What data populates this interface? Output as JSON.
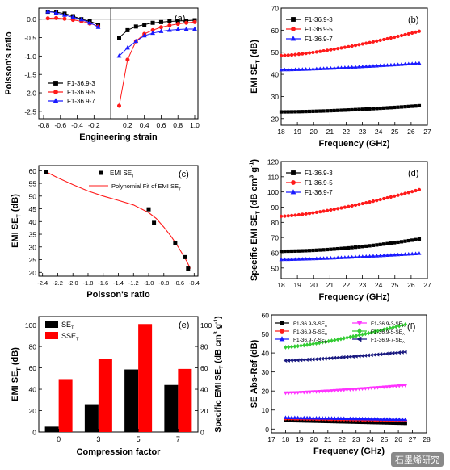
{
  "watermark": "石墨烯研究",
  "colors": {
    "black": "#000000",
    "red": "#ff1a1a",
    "blue": "#1a1aff",
    "magenta": "#ff33ff",
    "green": "#33cc33",
    "navy": "#1a1a80"
  },
  "chart_data": [
    {
      "panel": "(a)",
      "type": "line",
      "xlabel": "Engineering strain",
      "ylabel": "Poisson's ratio",
      "xlim": [
        -0.8,
        1.0
      ],
      "ylim": [
        -2.7,
        0.3
      ],
      "x_break": [
        -0.1,
        0.1
      ],
      "xticks": [
        "-0.8",
        "-0.6",
        "-0.4",
        "-0.2",
        "0.2",
        "0.4",
        "0.6",
        "0.8",
        "1.0"
      ],
      "xtick_values": [
        -0.8,
        -0.6,
        -0.4,
        -0.2,
        0.2,
        0.4,
        0.6,
        0.8,
        1.0
      ],
      "yticks": [
        "0.0",
        "-0.5",
        "-1.0",
        "-1.5",
        "-2.0",
        "-2.5"
      ],
      "ytick_values": [
        0,
        -0.5,
        -1.0,
        -1.5,
        -2.0,
        -2.5
      ],
      "legend_position": "bottom-left",
      "series": [
        {
          "name": "F1-36.9-3",
          "color": "#000000",
          "marker": "square",
          "x": [
            -0.75,
            -0.7,
            -0.65,
            -0.6,
            -0.55,
            -0.5,
            -0.45,
            -0.4,
            -0.35,
            -0.3,
            -0.25,
            -0.2,
            -0.15,
            0.1,
            0.2,
            0.3,
            0.4,
            0.5,
            0.6,
            0.7,
            0.8,
            0.9,
            1.0
          ],
          "y": [
            0.2,
            0.2,
            0.19,
            0.17,
            0.15,
            0.12,
            0.08,
            0.04,
            0.0,
            -0.03,
            -0.06,
            -0.1,
            -0.15,
            -0.5,
            -0.3,
            -0.2,
            -0.15,
            -0.1,
            -0.08,
            -0.06,
            -0.05,
            -0.04,
            -0.03
          ]
        },
        {
          "name": "F1-36.9-5",
          "color": "#ff1a1a",
          "marker": "circle",
          "x": [
            -0.75,
            -0.7,
            -0.65,
            -0.6,
            -0.55,
            -0.5,
            -0.45,
            -0.4,
            -0.35,
            -0.3,
            -0.25,
            -0.2,
            -0.15,
            0.1,
            0.2,
            0.3,
            0.4,
            0.5,
            0.6,
            0.7,
            0.8,
            0.9,
            1.0
          ],
          "y": [
            0.02,
            0.03,
            0.03,
            0.02,
            0.01,
            0.0,
            -0.02,
            -0.04,
            -0.06,
            -0.08,
            -0.12,
            -0.15,
            -0.2,
            -2.35,
            -1.1,
            -0.6,
            -0.4,
            -0.3,
            -0.22,
            -0.17,
            -0.13,
            -0.1,
            -0.08
          ]
        },
        {
          "name": "F1-36.9-7",
          "color": "#1a1aff",
          "marker": "triangle",
          "x": [
            -0.75,
            -0.7,
            -0.65,
            -0.6,
            -0.55,
            -0.5,
            -0.45,
            -0.4,
            -0.35,
            -0.3,
            -0.25,
            -0.2,
            -0.15,
            0.1,
            0.2,
            0.3,
            0.4,
            0.5,
            0.6,
            0.7,
            0.8,
            0.9,
            1.0
          ],
          "y": [
            0.2,
            0.19,
            0.17,
            0.14,
            0.11,
            0.08,
            0.05,
            0.02,
            -0.01,
            -0.05,
            -0.1,
            -0.15,
            -0.22,
            -1.0,
            -0.78,
            -0.6,
            -0.45,
            -0.38,
            -0.33,
            -0.3,
            -0.28,
            -0.27,
            -0.27
          ]
        }
      ]
    },
    {
      "panel": "(b)",
      "type": "line",
      "xlabel": "Frequency (GHz)",
      "ylabel": "EMI SET (dB)",
      "xlim": [
        18,
        27
      ],
      "ylim": [
        17,
        70
      ],
      "xticks": [
        "18",
        "19",
        "20",
        "21",
        "22",
        "23",
        "24",
        "25",
        "26",
        "27"
      ],
      "xtick_values": [
        18,
        19,
        20,
        21,
        22,
        23,
        24,
        25,
        26,
        27
      ],
      "yticks": [
        "20",
        "30",
        "40",
        "50",
        "60",
        "70"
      ],
      "ytick_values": [
        20,
        30,
        40,
        50,
        60,
        70
      ],
      "legend_position": "top-left",
      "series": [
        {
          "name": "F1-36.9-3",
          "color": "#000000",
          "marker": "square",
          "x_range": [
            18,
            26.5
          ],
          "y_start": 23.0,
          "y_end": 25.8,
          "curve": 1.6
        },
        {
          "name": "F1-36.9-5",
          "color": "#ff1a1a",
          "marker": "circle",
          "x_range": [
            18,
            26.5
          ],
          "y_start": 48.5,
          "y_end": 59.5,
          "curve": 1.4
        },
        {
          "name": "F1-36.9-7",
          "color": "#1a1aff",
          "marker": "triangle",
          "x_range": [
            18,
            26.5
          ],
          "y_start": 42.0,
          "y_end": 45.0,
          "curve": 1.4
        }
      ]
    },
    {
      "panel": "(c)",
      "type": "scatter",
      "xlabel": "Poisson's ratio",
      "ylabel": "EMI SET (dB)",
      "xlim": [
        -2.45,
        -0.35
      ],
      "ylim": [
        18.5,
        62
      ],
      "xticks": [
        "-2.4",
        "-2.2",
        "-2.0",
        "-1.8",
        "-1.6",
        "-1.4",
        "-1.2",
        "-1.0",
        "-0.8",
        "-0.6",
        "-0.4"
      ],
      "xtick_values": [
        -2.4,
        -2.2,
        -2.0,
        -1.8,
        -1.6,
        -1.4,
        -1.2,
        -1.0,
        -0.8,
        -0.6,
        -0.4
      ],
      "yticks": [
        "20",
        "25",
        "30",
        "35",
        "40",
        "45",
        "50",
        "55",
        "60"
      ],
      "ytick_values": [
        20,
        25,
        30,
        35,
        40,
        45,
        50,
        55,
        60
      ],
      "legend_position": "top-center",
      "points": {
        "name": "EMI SET",
        "x": [
          -2.35,
          -1.0,
          -0.93,
          -0.65,
          -0.52,
          -0.48
        ],
        "y": [
          59.5,
          44.8,
          39.5,
          31.5,
          26.0,
          21.5
        ]
      },
      "fit": {
        "name": "Polynomial Fit of EMI SET",
        "x": [
          -2.35,
          -2.2,
          -2.0,
          -1.8,
          -1.6,
          -1.4,
          -1.2,
          -1.0,
          -0.9,
          -0.8,
          -0.7,
          -0.6,
          -0.5,
          -0.45
        ],
        "y": [
          59.5,
          57.2,
          54.5,
          52.0,
          50.0,
          48.3,
          46.5,
          43.5,
          41.2,
          37.8,
          34.0,
          29.5,
          24.5,
          21.5
        ]
      }
    },
    {
      "panel": "(d)",
      "type": "line",
      "xlabel": "Frequency (GHz)",
      "ylabel": "Specific EMI SET (dB cm3 g-1)",
      "xlim": [
        18,
        27
      ],
      "ylim": [
        43,
        120
      ],
      "xticks": [
        "18",
        "19",
        "20",
        "21",
        "22",
        "23",
        "24",
        "25",
        "26",
        "27"
      ],
      "xtick_values": [
        18,
        19,
        20,
        21,
        22,
        23,
        24,
        25,
        26,
        27
      ],
      "yticks": [
        "50",
        "60",
        "70",
        "80",
        "90",
        "100",
        "110",
        "120"
      ],
      "ytick_values": [
        50,
        60,
        70,
        80,
        90,
        100,
        110,
        120
      ],
      "legend_position": "top-left",
      "series": [
        {
          "name": "F1-36.9-3",
          "color": "#000000",
          "marker": "square",
          "x_range": [
            18,
            26.5
          ],
          "y_start": 61.0,
          "y_end": 69.0,
          "curve": 1.8
        },
        {
          "name": "F1-36.9-5",
          "color": "#ff1a1a",
          "marker": "circle",
          "x_range": [
            18,
            26.5
          ],
          "y_start": 84.0,
          "y_end": 101.5,
          "curve": 1.4
        },
        {
          "name": "F1-36.9-7",
          "color": "#1a1aff",
          "marker": "triangle",
          "x_range": [
            18,
            26.5
          ],
          "y_start": 55.5,
          "y_end": 59.5,
          "curve": 1.4
        }
      ]
    },
    {
      "panel": "(e)",
      "type": "bar",
      "xlabel": "Compression factor",
      "ylabel": "EMI SET (dB)",
      "ylabel_right": "Specific EMI SET (dB cm3 g-1)",
      "categories": [
        "0",
        "3",
        "5",
        "7"
      ],
      "ylim": [
        0,
        108
      ],
      "yticks": [
        "0",
        "20",
        "40",
        "60",
        "80",
        "100"
      ],
      "ytick_values": [
        0,
        20,
        40,
        60,
        80,
        100
      ],
      "yticks_right": [
        "0",
        "20",
        "40",
        "60",
        "80",
        "100"
      ],
      "legend_position": "top-left",
      "series": [
        {
          "name": "SET",
          "color": "#000000",
          "values": [
            5,
            26,
            58.5,
            44
          ]
        },
        {
          "name": "SSET",
          "color": "#ff0000",
          "values": [
            49.5,
            68.5,
            101,
            59
          ]
        }
      ]
    },
    {
      "panel": "(f)",
      "type": "line",
      "xlabel": "Frequency (GHz)",
      "ylabel": "SE Abs-Ref (dB)",
      "xlim": [
        17,
        28
      ],
      "ylim": [
        -2,
        60
      ],
      "xticks": [
        "17",
        "18",
        "19",
        "20",
        "21",
        "22",
        "23",
        "24",
        "25",
        "26",
        "27",
        "28"
      ],
      "xtick_values": [
        17,
        18,
        19,
        20,
        21,
        22,
        23,
        24,
        25,
        26,
        27,
        28
      ],
      "yticks": [
        "0",
        "10",
        "20",
        "30",
        "40",
        "50",
        "60"
      ],
      "ytick_values": [
        0,
        10,
        20,
        30,
        40,
        50,
        60
      ],
      "legend_position": "top",
      "series": [
        {
          "name": "F1-36.9-3-SER",
          "color": "#000000",
          "marker": "square",
          "x_range": [
            18,
            26.5
          ],
          "y_start": 4.5,
          "y_end": 3.0,
          "curve": 1
        },
        {
          "name": "F1-36.9-3-SEA",
          "color": "#ff33ff",
          "marker": "triangle-down",
          "x_range": [
            18,
            26.5
          ],
          "y_start": 19.0,
          "y_end": 23.0,
          "curve": 1.3
        },
        {
          "name": "F1-36.9-5-SER",
          "color": "#ff1a1a",
          "marker": "circle",
          "x_range": [
            18,
            26.5
          ],
          "y_start": 5.5,
          "y_end": 4.5,
          "curve": 1
        },
        {
          "name": "F1-36.9-5-SEA",
          "color": "#33cc33",
          "marker": "diamond",
          "x_range": [
            18,
            26.5
          ],
          "y_start": 43.0,
          "y_end": 55.0,
          "curve": 1.3
        },
        {
          "name": "F1-36.9-7-SER",
          "color": "#1a1aff",
          "marker": "triangle",
          "x_range": [
            18,
            26.5
          ],
          "y_start": 6.0,
          "y_end": 5.0,
          "curve": 1
        },
        {
          "name": "F1-36.9-7-SEA",
          "color": "#1a1a80",
          "marker": "triangle-left",
          "x_range": [
            18,
            26.5
          ],
          "y_start": 36.0,
          "y_end": 40.5,
          "curve": 1.3
        }
      ]
    }
  ]
}
